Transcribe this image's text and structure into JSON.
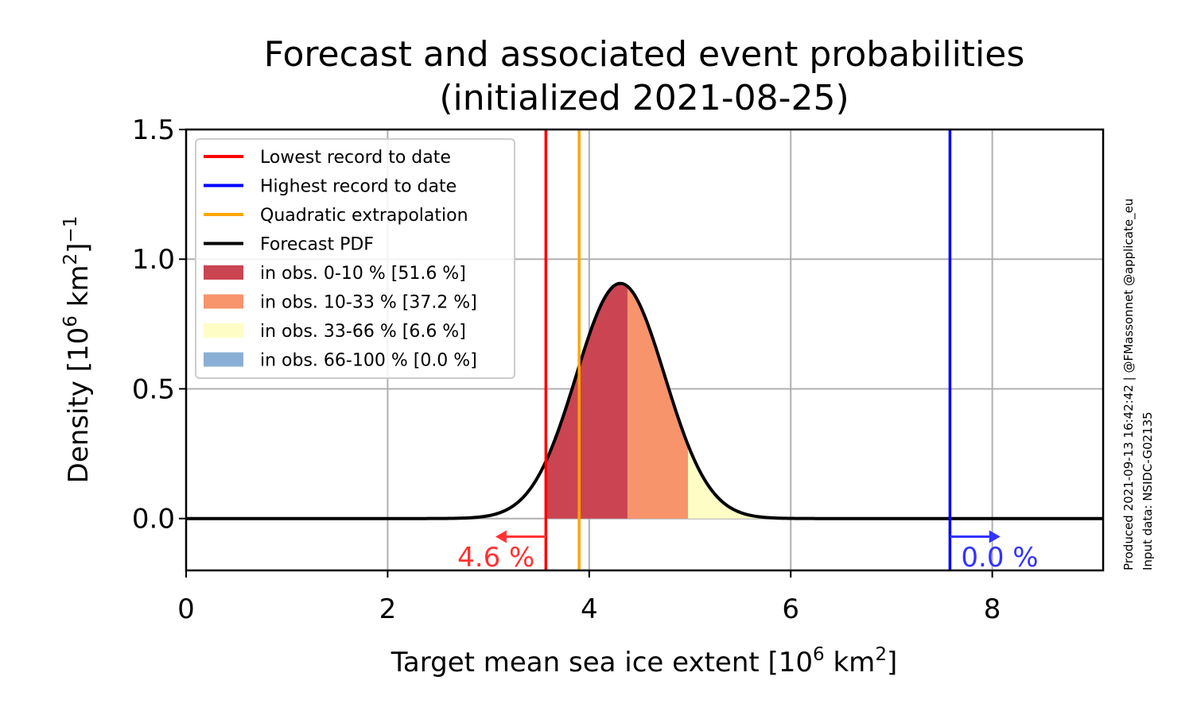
{
  "chart_data": {
    "type": "line",
    "title": "Forecast and associated event probabilities",
    "subtitle": "(initialized 2021-08-25)",
    "xlabel": {
      "prefix": "Target mean sea ice extent [10",
      "sup1": "6",
      "mid": " km",
      "sup2": "2",
      "suffix": "]"
    },
    "ylabel": {
      "prefix": "Density [10",
      "sup1": "6",
      "mid": " km",
      "sup2": "2",
      "suffix": "]",
      "sup3": "−1"
    },
    "xlim": [
      0,
      9.1
    ],
    "ylim": [
      -0.2,
      1.5
    ],
    "xticks": [
      0,
      2,
      4,
      6,
      8
    ],
    "xtick_labels": [
      "0",
      "2",
      "4",
      "6",
      "8"
    ],
    "yticks": [
      0.0,
      0.5,
      1.0,
      1.5
    ],
    "ytick_labels": [
      "0.0",
      "0.5",
      "1.0",
      "1.5"
    ],
    "grid": true,
    "legend_position": "top-left",
    "pdf": {
      "name": "Forecast PDF",
      "mean": 4.31,
      "sd": 0.44,
      "color": "#000000"
    },
    "lines": [
      {
        "name": "Lowest record to date",
        "x": 3.57,
        "color": "#ff0000"
      },
      {
        "name": "Highest record to date",
        "x": 7.58,
        "color": "#0000ff"
      },
      {
        "name": "Quadratic extrapolation",
        "x": 3.9,
        "color": "#ffa500"
      }
    ],
    "bands": [
      {
        "name": "in obs. 0-10 % [51.6 %]",
        "from": 3.57,
        "to": 4.38,
        "color": "#cb4452"
      },
      {
        "name": "in obs. 10-33 % [37.2 %]",
        "from": 4.38,
        "to": 4.98,
        "color": "#f7946c"
      },
      {
        "name": "in obs. 33-66 % [6.6 %]",
        "from": 4.98,
        "to": 7.58,
        "color": "#fefdc6"
      },
      {
        "name": "in obs. 66-100 % [0.0 %]",
        "from": 7.58,
        "to": 9.1,
        "color": "#89afd4"
      }
    ],
    "annotations": [
      {
        "text": "4.6 %",
        "color": "#ff3333",
        "arrow_from": 3.57,
        "arrow_to": 3.07
      },
      {
        "text": "0.0 %",
        "color": "#3333ff",
        "arrow_from": 7.58,
        "arrow_to": 8.08
      }
    ],
    "side_note": [
      "Produced 2021-09-13 16:42:42 | @FMassonnet @applicate_eu",
      "Input data: NSIDC-G02135"
    ]
  }
}
